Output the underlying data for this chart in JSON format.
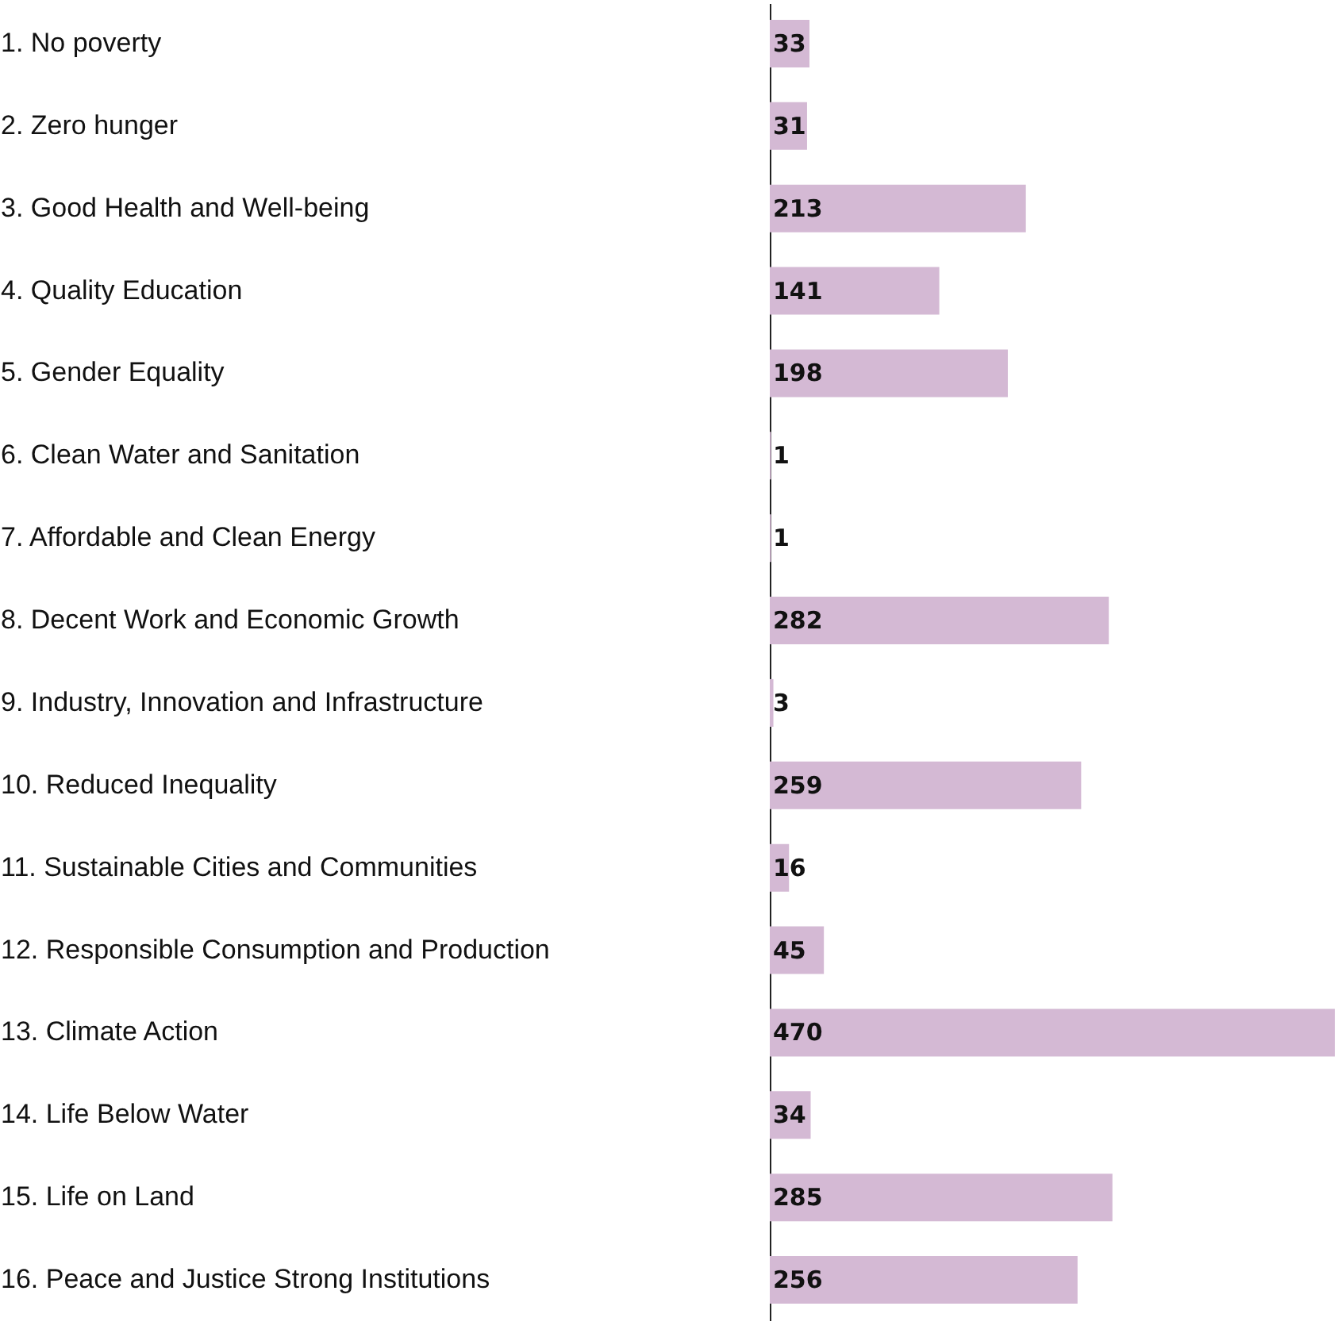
{
  "chart_data": {
    "type": "bar",
    "orientation": "horizontal",
    "data_labels": true,
    "color": "#d4b9d4",
    "categories": [
      "1. No poverty",
      "2. Zero hunger",
      "3. Good Health and Well-being",
      "4. Quality Education",
      "5. Gender Equality",
      "6. Clean Water and Sanitation",
      "7. Affordable and Clean Energy",
      "8. Decent Work and Economic Growth",
      "9. Industry, Innovation and Infrastructure",
      "10. Reduced Inequality",
      "11. Sustainable Cities and Communities",
      "12. Responsible Consumption and Production",
      "13. Climate Action",
      "14. Life Below Water",
      "15. Life on Land",
      "16. Peace and Justice Strong Institutions"
    ],
    "values": [
      33,
      31,
      213,
      141,
      198,
      1,
      1,
      282,
      3,
      259,
      16,
      45,
      470,
      34,
      285,
      256
    ]
  }
}
